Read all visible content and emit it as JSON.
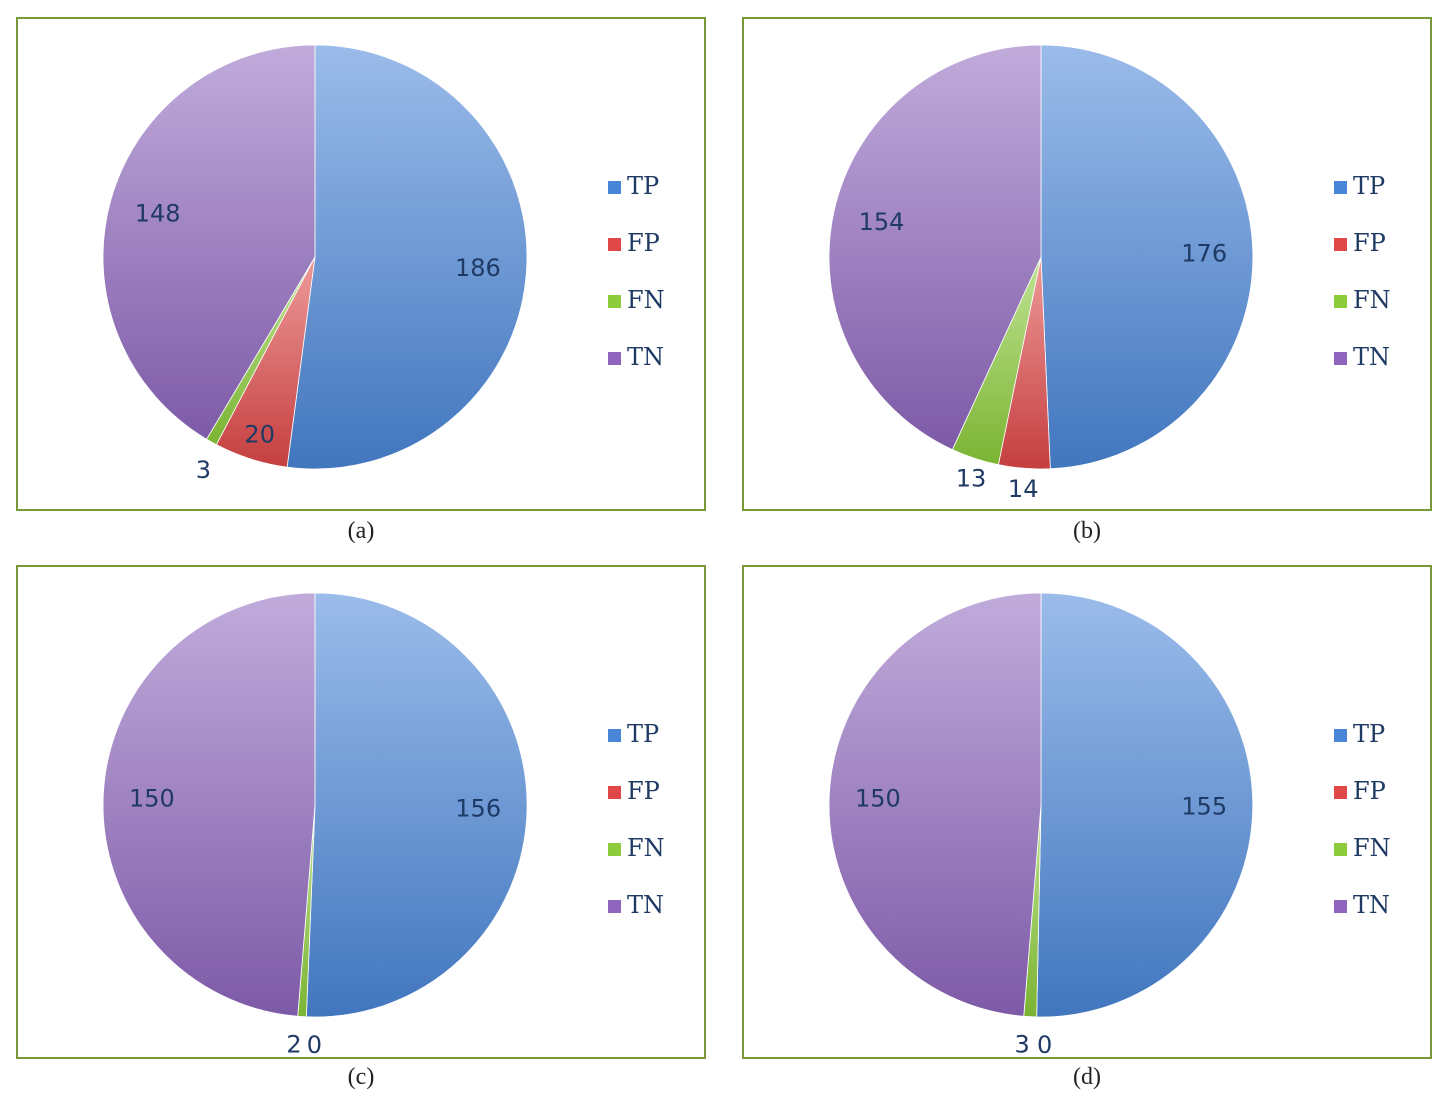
{
  "legend": [
    {
      "key": "TP",
      "label": "TP",
      "color": "#4a86d8"
    },
    {
      "key": "FP",
      "label": "FP",
      "color": "#e04848"
    },
    {
      "key": "FN",
      "label": "FN",
      "color": "#8ccc3a"
    },
    {
      "key": "TN",
      "label": "TN",
      "color": "#8e66be"
    }
  ],
  "chart_data": [
    {
      "type": "pie",
      "caption": "(a)",
      "legend_position": "right",
      "slices": [
        {
          "name": "TP",
          "value": 186
        },
        {
          "name": "FP",
          "value": 20
        },
        {
          "name": "FN",
          "value": 3
        },
        {
          "name": "TN",
          "value": 148
        }
      ]
    },
    {
      "type": "pie",
      "caption": "(b)",
      "legend_position": "right",
      "slices": [
        {
          "name": "TP",
          "value": 176
        },
        {
          "name": "FP",
          "value": 14
        },
        {
          "name": "FN",
          "value": 13
        },
        {
          "name": "TN",
          "value": 154
        }
      ]
    },
    {
      "type": "pie",
      "caption": "(c)",
      "legend_position": "right",
      "slices": [
        {
          "name": "TP",
          "value": 156
        },
        {
          "name": "FP",
          "value": 0
        },
        {
          "name": "FN",
          "value": 2
        },
        {
          "name": "TN",
          "value": 150
        }
      ]
    },
    {
      "type": "pie",
      "caption": "(d)",
      "legend_position": "right",
      "slices": [
        {
          "name": "TP",
          "value": 155
        },
        {
          "name": "FP",
          "value": 0
        },
        {
          "name": "FN",
          "value": 3
        },
        {
          "name": "TN",
          "value": 150
        }
      ]
    }
  ]
}
